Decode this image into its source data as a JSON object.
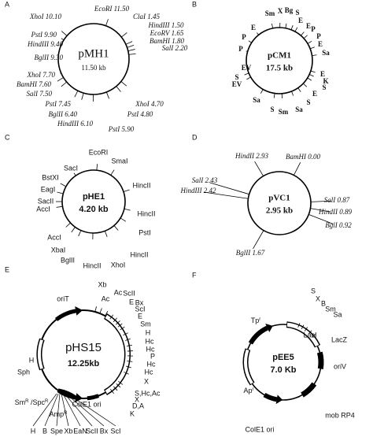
{
  "panels": [
    {
      "letter": "A",
      "name": "pMH1",
      "size": "11.50 kb",
      "sites": [
        "XhoI 10.10",
        "EcoRI 11.50",
        "ClaI 1.45",
        "HindIII 1.50",
        "EcoRV 1.65",
        "BamHI 1.80",
        "SalI 2.20",
        "PstI 9.90",
        "HindIII 9.40",
        "BglII 9.30",
        "XhoI 7.70",
        "BamHI 7.60",
        "SalI 7.50",
        "PstI 7.45",
        "BglII 6.40",
        "HindIII 6.10",
        "PstI 5.90",
        "PstI 4.80",
        "XhoI 4.70"
      ]
    },
    {
      "letter": "B",
      "name": "pCM1",
      "size": "17.5 kb",
      "sites": [
        "Sm",
        "X",
        "Bg",
        "S",
        "E",
        "E",
        "P",
        "P",
        "E",
        "P",
        "P",
        "E",
        "Sa",
        "E",
        "K",
        "EV",
        "S",
        "EV",
        "Sa",
        "E",
        "S",
        "S",
        "Sm",
        "Sa",
        "S"
      ]
    },
    {
      "letter": "C",
      "name": "pHE1",
      "size": "4.20 kb",
      "sites": [
        "SacI",
        "EcoRI",
        "SmaI",
        "BstXI",
        "HincII",
        "EagI",
        "SacII",
        "AccI",
        "HincII",
        "PstI",
        "AccI",
        "XbaI",
        "HincII",
        "BglII",
        "HincII",
        "XhoI"
      ]
    },
    {
      "letter": "D",
      "name": "pVC1",
      "size": "2.95 kb",
      "sites": [
        "HindII 2.93",
        "BamHI 0.00",
        "SalI 2.43",
        "HindIII 2.42",
        "SalI 0.87",
        "HindII 0.89",
        "BglI 0.92",
        "BglII 1.67"
      ]
    },
    {
      "letter": "E",
      "name": "pHS15",
      "size": "12.25kb",
      "sites": [
        "Xb",
        "Ac",
        "Ac",
        "ScII",
        "E",
        "Bx",
        "ScI",
        "E",
        "Sm",
        "H",
        "Hc",
        "Hc",
        "P",
        "Hc",
        "Hc",
        "X",
        "S,Hc,Ac",
        "X",
        "D,A",
        "K"
      ],
      "features": [
        "oriT",
        "H",
        "Sph",
        [
          "Sm",
          "R",
          " /Spc",
          "R"
        ],
        [
          "Amp",
          "R"
        ],
        "ColE1 ori"
      ],
      "bottom_sites": [
        "H",
        "B",
        "Spe",
        "Xb",
        "EaN",
        "ScII",
        "Bx",
        "ScI"
      ]
    },
    {
      "letter": "F",
      "name": "pEE5",
      "size": "7.0 Kb",
      "sites": [
        "S",
        "X",
        "B",
        "Sm",
        "Sa"
      ],
      "features": [
        [
          "Tp",
          "r"
        ],
        "LacI",
        "LacZ",
        "oriV",
        [
          "Ap",
          "r"
        ],
        "mob RP4",
        "ColE1 ori"
      ]
    }
  ]
}
